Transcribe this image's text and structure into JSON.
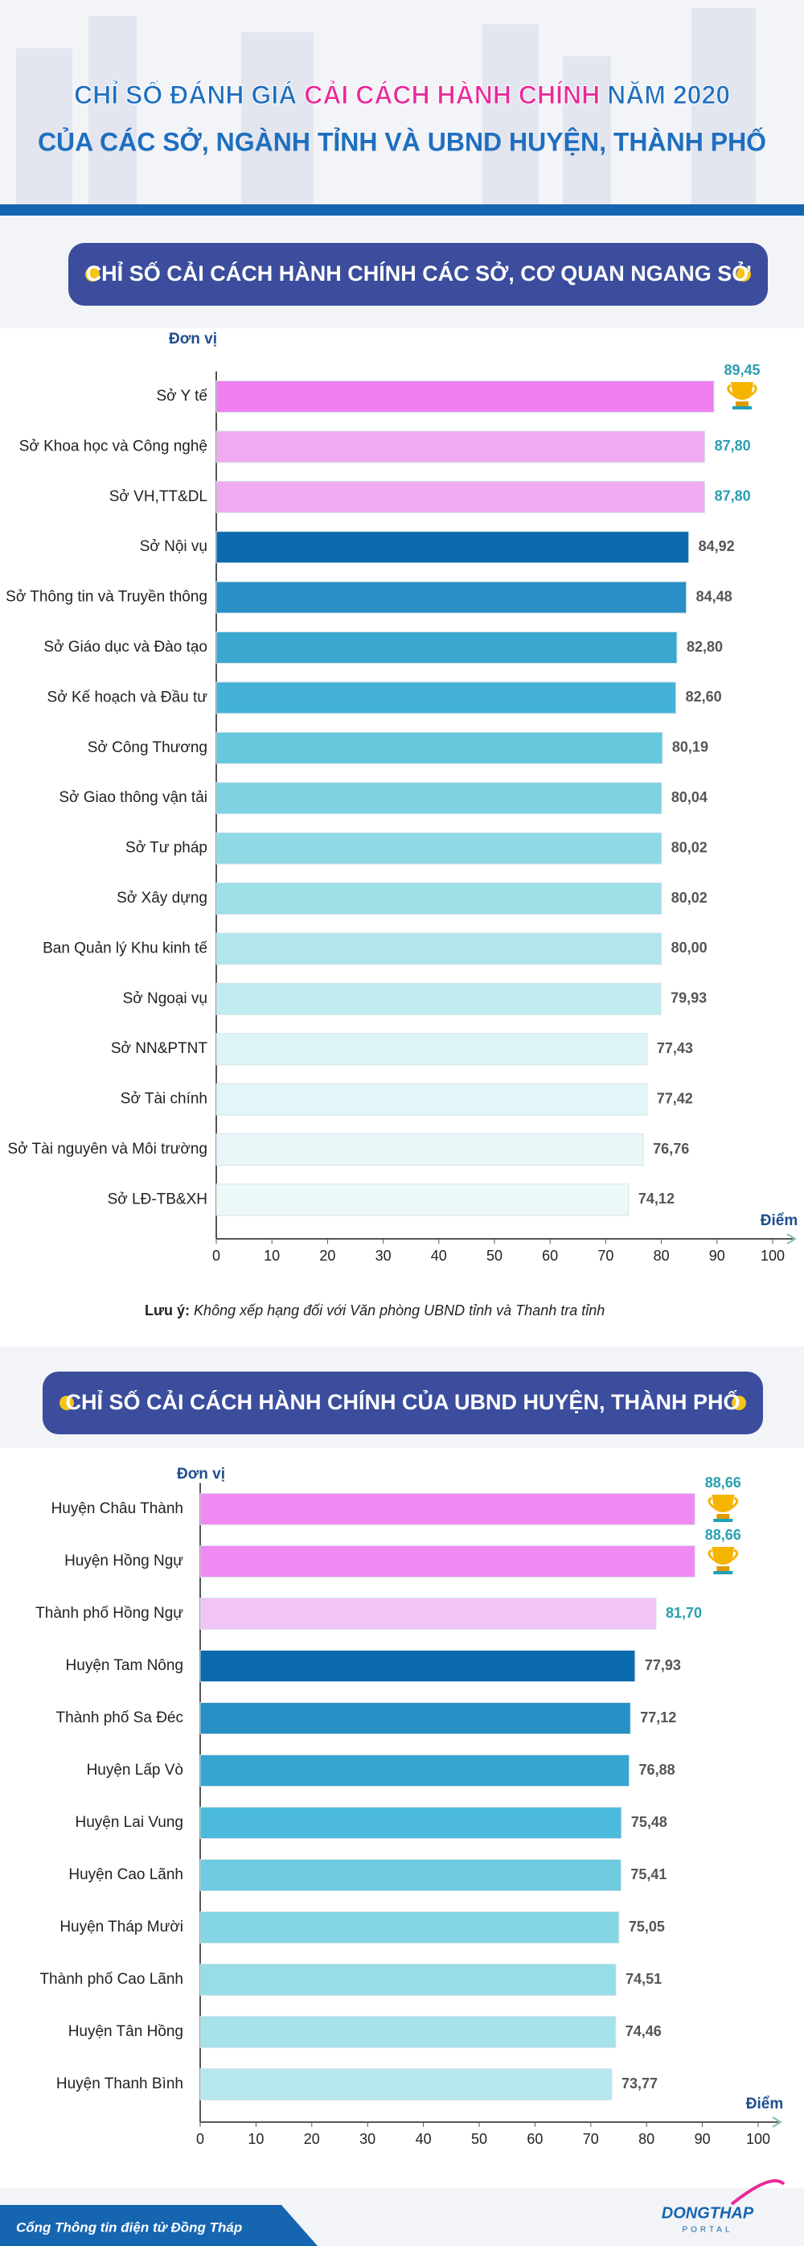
{
  "header": {
    "title_line1": [
      "CHỈ SỐ ĐÁNH GIÁ ",
      "CẢI CÁCH HÀNH CHÍNH",
      " NĂM 2020"
    ],
    "title_line2": "CỦA CÁC SỞ, NGÀNH TỈNH VÀ UBND HUYỆN, THÀNH PHỐ"
  },
  "chart_data": [
    {
      "type": "bar",
      "orientation": "horizontal",
      "title": "CHỈ SỐ CẢI CÁCH HÀNH CHÍNH CÁC SỞ, CƠ QUAN NGANG SỞ",
      "y_label": "Đơn vị",
      "x_label": "Điểm",
      "categories": [
        "Sở Y tế",
        "Sở Khoa học và Công nghệ",
        "Sở VH,TT&DL",
        "Sở Nội vụ",
        "Sở Thông tin và Truyền thông",
        "Sở Giáo dục và Đào tạo",
        "Sở Kế hoạch và Đầu tư",
        "Sở Công Thương",
        "Sở Giao thông vận tải",
        "Sở Tư pháp",
        "Sở Xây dựng",
        "Ban Quản lý Khu kinh tế",
        "Sở Ngoại vụ",
        "Sở NN&PTNT",
        "Sở Tài chính",
        "Sở Tài nguyên và Môi trường",
        "Sở LĐ-TB&XH"
      ],
      "values": [
        89.45,
        87.8,
        87.8,
        84.92,
        84.48,
        82.8,
        82.6,
        80.19,
        80.04,
        80.02,
        80.02,
        80.0,
        79.93,
        77.43,
        77.42,
        76.76,
        74.12
      ],
      "value_labels": [
        "89,45",
        "87,80",
        "87,80",
        "84,92",
        "84,48",
        "82,80",
        "82,60",
        "80,19",
        "80,04",
        "80,02",
        "80,02",
        "80,00",
        "79,93",
        "77,43",
        "77,42",
        "76,76",
        "74,12"
      ],
      "colors": [
        "#f07ff0",
        "#f0aaf2",
        "#f0aaf2",
        "#0b6aad",
        "#2a8fc4",
        "#3aa7cf",
        "#43b2d6",
        "#67c7dc",
        "#7ed2e2",
        "#8fd9e5",
        "#9edfe8",
        "#b0e6ec",
        "#c0ebf0",
        "#dff4f6",
        "#e3f5f7",
        "#e8f6f8",
        "#edf8f9"
      ],
      "value_label_colors": [
        "#2a9fb0",
        "#2a9fb0",
        "#2a9fb0",
        "#555555",
        "#555555",
        "#555555",
        "#555555",
        "#555555",
        "#555555",
        "#555555",
        "#555555",
        "#555555",
        "#555555",
        "#555555",
        "#555555",
        "#555555",
        "#555555"
      ],
      "xlim": [
        0,
        100
      ],
      "xticks": [
        0,
        10,
        20,
        30,
        40,
        50,
        60,
        70,
        80,
        90,
        100
      ],
      "note_label": "Lưu ý:",
      "note_text": "Không xếp hạng đối với Văn phòng UBND tỉnh và Thanh tra tỉnh"
    },
    {
      "type": "bar",
      "orientation": "horizontal",
      "title": "CHỈ SỐ CẢI CÁCH HÀNH CHÍNH CỦA UBND HUYỆN, THÀNH PHỐ",
      "y_label": "Đơn vị",
      "x_label": "Điểm",
      "categories": [
        "Huyện Châu Thành",
        "Huyện Hồng Ngự",
        "Thành phố Hồng Ngự",
        "Huyện Tam Nông",
        "Thành phố Sa Đéc",
        "Huyện Lấp Vò",
        "Huyện Lai Vung",
        "Huyện Cao Lãnh",
        "Huyện Tháp Mười",
        "Thành phố Cao Lãnh",
        "Huyện Tân Hồng",
        "Huyện Thanh Bình"
      ],
      "values": [
        88.66,
        88.66,
        81.7,
        77.93,
        77.12,
        76.88,
        75.48,
        75.41,
        75.05,
        74.51,
        74.46,
        73.77
      ],
      "value_labels": [
        "88,66",
        "88,66",
        "81,70",
        "77,93",
        "77,12",
        "76,88",
        "75,48",
        "75,41",
        "75,05",
        "74,51",
        "74,46",
        "73,77"
      ],
      "colors": [
        "#f08af2",
        "#f08af2",
        "#f0c4f5",
        "#0b6aad",
        "#2690c6",
        "#37a6d2",
        "#4cbadb",
        "#6ecbe0",
        "#85d6e4",
        "#96dde7",
        "#a6e2ea",
        "#b5e7ed"
      ],
      "value_label_colors": [
        "#2a9fb0",
        "#2a9fb0",
        "#2a9fb0",
        "#555555",
        "#555555",
        "#555555",
        "#555555",
        "#555555",
        "#555555",
        "#555555",
        "#555555",
        "#555555"
      ],
      "xlim": [
        0,
        100
      ],
      "xticks": [
        0,
        10,
        20,
        30,
        40,
        50,
        60,
        70,
        80,
        90,
        100
      ]
    }
  ],
  "footer": {
    "site": "Cổng Thông tin điện tử Đồng Tháp",
    "logo_top": "DONGTHAP",
    "logo_bottom": "PORTAL"
  }
}
